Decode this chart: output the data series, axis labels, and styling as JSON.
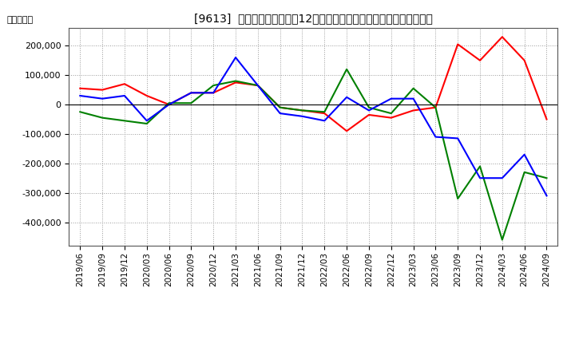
{
  "title": "[9613]  キャッシュフローの12か月移動合計の対前年同期増減額の推移",
  "ylabel": "（百万円）",
  "dates": [
    "2019/06",
    "2019/09",
    "2019/12",
    "2020/03",
    "2020/06",
    "2020/09",
    "2020/12",
    "2021/03",
    "2021/06",
    "2021/09",
    "2021/12",
    "2022/03",
    "2022/06",
    "2022/09",
    "2022/12",
    "2023/03",
    "2023/06",
    "2023/09",
    "2023/12",
    "2024/03",
    "2024/06",
    "2024/09"
  ],
  "operating_cf": [
    55000,
    50000,
    70000,
    30000,
    0,
    40000,
    40000,
    75000,
    65000,
    -10000,
    -20000,
    -30000,
    -90000,
    -35000,
    -45000,
    -20000,
    -10000,
    205000,
    150000,
    230000,
    150000,
    -50000
  ],
  "investing_cf": [
    -25000,
    -45000,
    -55000,
    -65000,
    5000,
    5000,
    65000,
    80000,
    65000,
    -10000,
    -20000,
    -25000,
    120000,
    -10000,
    -30000,
    55000,
    -10000,
    -320000,
    -210000,
    -460000,
    -230000,
    -250000
  ],
  "free_cf": [
    30000,
    20000,
    30000,
    -55000,
    0,
    40000,
    40000,
    160000,
    65000,
    -30000,
    -40000,
    -55000,
    25000,
    -20000,
    20000,
    20000,
    -110000,
    -115000,
    -250000,
    -250000,
    -170000,
    -310000
  ],
  "colors": {
    "operating": "#ff0000",
    "investing": "#008000",
    "free": "#0000ff"
  },
  "ylim": [
    -480000,
    260000
  ],
  "yticks": [
    -400000,
    -300000,
    -200000,
    -100000,
    0,
    100000,
    200000
  ],
  "background_color": "#ffffff",
  "grid_color": "#aaaaaa"
}
